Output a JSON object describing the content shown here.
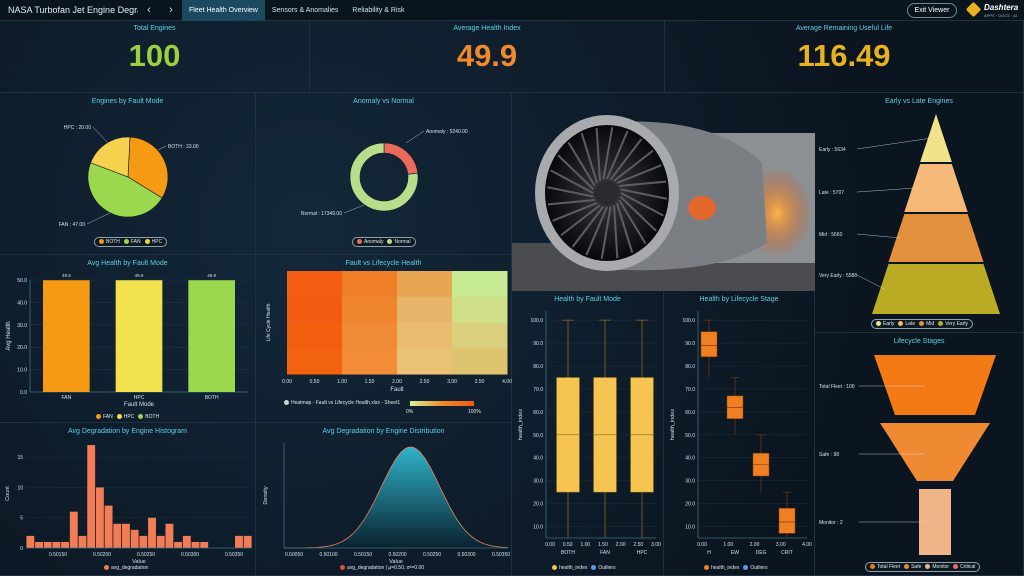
{
  "app": {
    "title": "NASA Turbofan Jet Engine Degrada...",
    "exit_label": "Exit Viewer",
    "logo_name": "Dashtera",
    "logo_sub": "APPS · DOCS · AI"
  },
  "nav": {
    "back_icon": "chevron-left-icon",
    "forward_icon": "chevron-right-icon"
  },
  "tabs": [
    {
      "label": "Fleet Health Overview",
      "active": true
    },
    {
      "label": "Sensors & Anomalies"
    },
    {
      "label": "Reliability & Risk"
    }
  ],
  "kpis": {
    "total_engines": {
      "label": "Total Engines",
      "value": "100",
      "color": "#9bd13f"
    },
    "avg_health": {
      "label": "Average Health Index",
      "value": "49.9",
      "color": "#f08a2c"
    },
    "avg_rul": {
      "label": "Average Remaining Useful Life",
      "value": "116.49",
      "color": "#e8b21e"
    }
  },
  "panels": {
    "fault_mode_pie": {
      "title": "Engines by Fault Mode",
      "legend": [
        "BOTH",
        "FAN",
        "HPC"
      ]
    },
    "anomaly_donut": {
      "title": "Anomaly vs Normal",
      "legend": [
        "Anomaly",
        "Normal"
      ]
    },
    "early_late": {
      "title": "Early vs Late Engines",
      "legend": [
        "Early",
        "Late",
        "Mid",
        "Very Early"
      ]
    },
    "avg_health_bar": {
      "title": "Avg Health by Fault Mode",
      "legend": [
        "FAN",
        "HPC",
        "BOTH"
      ]
    },
    "heatmap": {
      "title": "Fault vs Lifecycle Health",
      "legend": "Heatmap - Fault vs Lifecycle Health.xlsx - Sheet1",
      "scale_min": "0%",
      "scale_max": "100%"
    },
    "health_fault_box": {
      "title": "Health by Fault Mode",
      "legend": [
        "health_index",
        "Outliers"
      ]
    },
    "health_stage_box": {
      "title": "Health by Lifecycle Stage",
      "legend": [
        "health_index",
        "Outliers"
      ]
    },
    "lifecycle_funnel": {
      "title": "Lifecycle Stages",
      "legend": [
        "Total Fleet",
        "Safe",
        "Monitor",
        "Critical"
      ]
    },
    "histogram": {
      "title": "Avg Degradation by Engine Histogram",
      "legend": "avg_degradation"
    },
    "distribution": {
      "title": "Avg Degradation by Engine Distribution",
      "legend": "avg_degradation | μ=0.50, σ²=0.00"
    }
  },
  "chart_data": [
    {
      "type": "pie",
      "title": "Engines by Fault Mode",
      "slices": [
        {
          "label": "BOTH",
          "value": 33.0,
          "color": "#f59a12"
        },
        {
          "label": "FAN",
          "value": 47.0,
          "color": "#9bd84e"
        },
        {
          "label": "HPC",
          "value": 20.0,
          "color": "#f4d24e"
        }
      ],
      "labels": [
        "BOTH : 33.00",
        "FAN : 47.00",
        "HPC : 20.00"
      ]
    },
    {
      "type": "pie",
      "title": "Anomaly vs Normal",
      "slices": [
        {
          "label": "Anomaly",
          "value": 5240,
          "color": "#ec6a5c"
        },
        {
          "label": "Normal",
          "value": 17349,
          "color": "#b8de8c"
        }
      ],
      "labels": [
        "Anomaly : 5240.00",
        "Normal : 17349.00"
      ]
    },
    {
      "type": "bar",
      "title": "Avg Health by Fault Mode",
      "categories": [
        "FAN",
        "HPC",
        "BOTH"
      ],
      "values": [
        49.9,
        49.9,
        49.9
      ],
      "data_labels": [
        "49.9",
        "49.9",
        "49.9"
      ],
      "colors": [
        "#f59a12",
        "#f2e14e",
        "#9bd84e"
      ],
      "xlabel": "Fault Mode",
      "ylabel": "Avg Health",
      "ylim": [
        0,
        50
      ],
      "yticks": [
        "0.0",
        "10.0",
        "20.0",
        "30.0",
        "40.0",
        "50.0"
      ]
    },
    {
      "type": "heatmap",
      "title": "Fault vs Lifecycle Health",
      "xlabel": "Fault",
      "ylabel": "Life Cycle Health",
      "xticks": [
        "0.00",
        "0.50",
        "1.00",
        "1.50",
        "2.00",
        "2.50",
        "3.00",
        "3.50",
        "4.00"
      ],
      "cells": [
        [
          "#f35e14",
          "#f07d28",
          "#e8a653",
          "#c6eb93"
        ],
        [
          "#f25b12",
          "#f08530",
          "#e7b56a",
          "#d0df88"
        ],
        [
          "#f2600f",
          "#ef8a36",
          "#e9bb6d",
          "#d9cf7d"
        ],
        [
          "#f2620f",
          "#f28c36",
          "#eac274",
          "#dfc470"
        ]
      ]
    },
    {
      "type": "box",
      "title": "Health by Fault Mode",
      "categories": [
        "BOTH",
        "FAN",
        "HPC"
      ],
      "xticks": [
        "0.00",
        "0.50",
        "1.00",
        "1.50",
        "2.00",
        "2.50",
        "3.00"
      ],
      "ylabel": "health_index",
      "yticks": [
        "10.0",
        "20.0",
        "30.0",
        "40.0",
        "50.0",
        "60.0",
        "70.0",
        "80.0",
        "90.0",
        "100.0"
      ],
      "boxes": [
        {
          "min": 0,
          "q1": 25,
          "median": 50,
          "q3": 75,
          "max": 100
        },
        {
          "min": 0,
          "q1": 25,
          "median": 50,
          "q3": 75,
          "max": 100
        },
        {
          "min": 0,
          "q1": 25,
          "median": 50,
          "q3": 75,
          "max": 100
        }
      ]
    },
    {
      "type": "box",
      "title": "Health by Lifecycle Stage",
      "categories": [
        "H",
        "EW",
        "DEG",
        "CRIT"
      ],
      "xticks": [
        "0.00",
        "1.00",
        "2.00",
        "3.00",
        "4.00"
      ],
      "ylabel": "health_index",
      "yticks": [
        "10.0",
        "20.0",
        "30.0",
        "40.0",
        "50.0",
        "60.0",
        "70.0",
        "80.0",
        "90.0",
        "100.0"
      ],
      "boxes": [
        {
          "min": 75,
          "q1": 84,
          "median": 89,
          "q3": 95,
          "max": 100
        },
        {
          "min": 50,
          "q1": 57,
          "median": 62,
          "q3": 67,
          "max": 75
        },
        {
          "min": 25,
          "q1": 32,
          "median": 37,
          "q3": 42,
          "max": 50
        },
        {
          "min": 0,
          "q1": 7,
          "median": 12,
          "q3": 18,
          "max": 25
        }
      ]
    },
    {
      "type": "funnel",
      "title": "Early vs Late Engines",
      "stages": [
        {
          "label": "Early",
          "value": 5634,
          "color": "#f2e28a"
        },
        {
          "label": "Late",
          "value": 5707,
          "color": "#f5b97a"
        },
        {
          "label": "Mid",
          "value": 5660,
          "color": "#e1903d"
        },
        {
          "label": "Very Early",
          "value": 5588,
          "color": "#b9ab24"
        }
      ],
      "labels": [
        "Early : 5634",
        "Late : 5707",
        "Mid : 5660",
        "Very Early : 5588"
      ]
    },
    {
      "type": "funnel",
      "title": "Lifecycle Stages",
      "stages": [
        {
          "label": "Total Fleet",
          "value": 100,
          "color": "#f37a14"
        },
        {
          "label": "Safe",
          "value": 98,
          "color": "#ef8a32"
        },
        {
          "label": "Monitor",
          "value": 2,
          "color": "#f0b489"
        }
      ],
      "labels": [
        "Total Fleet : 100",
        "Safe : 98",
        "Monitor : 2"
      ]
    },
    {
      "type": "bar",
      "title": "Avg Degradation by Engine Histogram",
      "xlabel": "Value",
      "ylabel": "Count",
      "xticks": [
        "0.50150",
        "0.50200",
        "0.50250",
        "0.50300",
        "0.50350"
      ],
      "yticks": [
        "0",
        "5",
        "10",
        "15"
      ],
      "ylim": [
        0,
        18
      ],
      "values": [
        2,
        1,
        1,
        1,
        1,
        6,
        2,
        17,
        10,
        7,
        4,
        4,
        3,
        2,
        5,
        2,
        4,
        1,
        2,
        1,
        1,
        0,
        0,
        0,
        2,
        2
      ]
    },
    {
      "type": "area",
      "title": "Avg Degradation by Engine Distribution",
      "xlabel": "Value",
      "ylabel": "Density",
      "xticks": [
        "0.50050",
        "0.50100",
        "0.50150",
        "0.50200",
        "0.50250",
        "0.50300",
        "0.50350"
      ],
      "mean": 0.5024,
      "sd": 0.00045
    }
  ]
}
